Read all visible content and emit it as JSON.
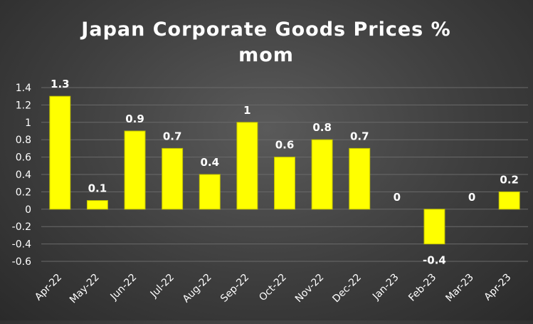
{
  "chart_data": {
    "type": "bar",
    "title_lines": [
      "Japan Corporate Goods Prices %",
      "mom"
    ],
    "categories": [
      "Apr-22",
      "May-22",
      "Jun-22",
      "Jul-22",
      "Aug-22",
      "Sep-22",
      "Oct-22",
      "Nov-22",
      "Dec-22",
      "Jan-23",
      "Feb-23",
      "Mar-23",
      "Apr-23"
    ],
    "values": [
      1.3,
      0.1,
      0.9,
      0.7,
      0.4,
      1,
      0.6,
      0.8,
      0.7,
      0,
      -0.4,
      0,
      0.2
    ],
    "data_labels": [
      "1.3",
      "0.1",
      "0.9",
      "0.7",
      "0.4",
      "1",
      "0.6",
      "0.8",
      "0.7",
      "0",
      "-0.4",
      "0",
      "0.2"
    ],
    "y_ticks": [
      "-0.6",
      "-0.4",
      "-0.2",
      "0",
      "0.2",
      "0.4",
      "0.6",
      "0.8",
      "1",
      "1.2",
      "1.4"
    ],
    "ylim": [
      -0.6,
      1.4
    ],
    "grid": true,
    "legend": "none",
    "bar_color": "#FFFF00",
    "bar_border_color": "#BFBF00",
    "xlabel": "",
    "ylabel": ""
  }
}
